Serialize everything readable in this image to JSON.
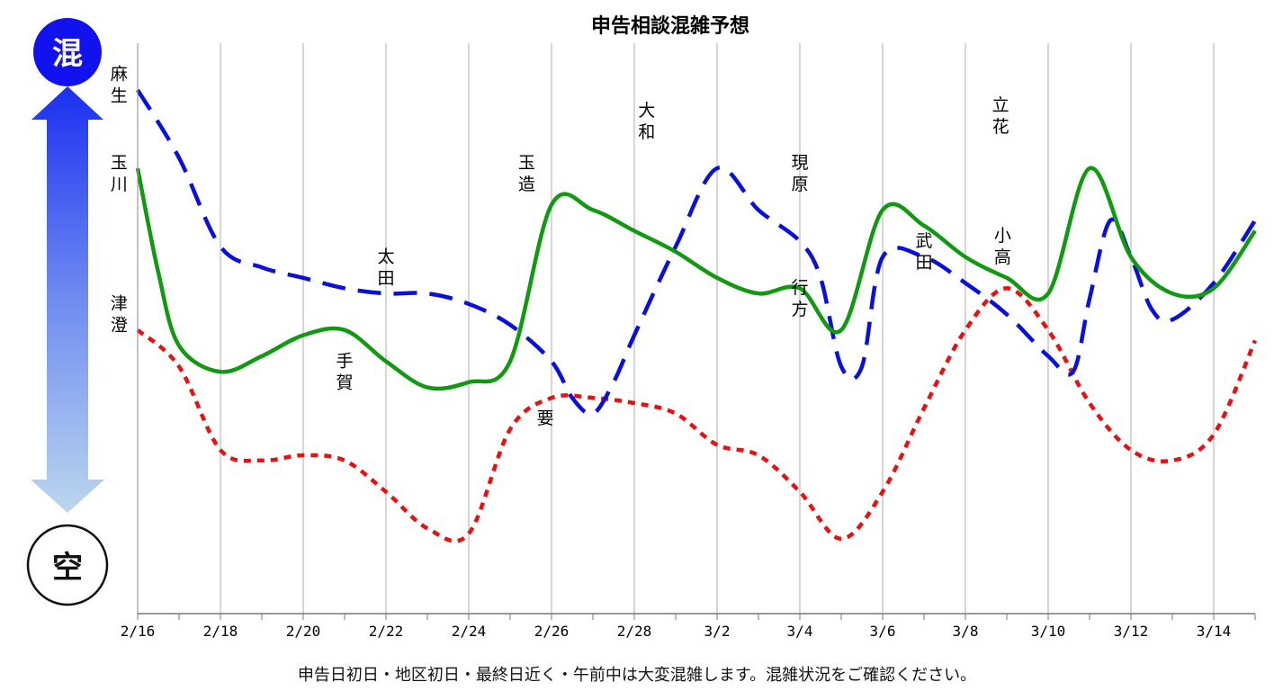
{
  "chart_data": {
    "type": "line",
    "title": "申告相談混雑予想",
    "footer": "申告日初日・地区初日・最終日近く・午前中は大変混雑します。混雑状況をご確認ください。",
    "scale": {
      "top_label": "混",
      "bottom_label": "空"
    },
    "x_ticks": [
      "2/16",
      "2/18",
      "2/20",
      "2/22",
      "2/24",
      "2/26",
      "2/28",
      "3/2",
      "3/4",
      "3/6",
      "3/8",
      "3/10",
      "3/12",
      "3/14"
    ],
    "x_range": [
      0,
      27
    ],
    "ylim": [
      0,
      100
    ],
    "grid": true,
    "series": [
      {
        "key": "blue",
        "color": "#0a10dc",
        "dash": "dashed",
        "points": [
          [
            0,
            100
          ],
          [
            1,
            87
          ],
          [
            2,
            70
          ],
          [
            3,
            66
          ],
          [
            4,
            64
          ],
          [
            5,
            62
          ],
          [
            6,
            61
          ],
          [
            7,
            61
          ],
          [
            8,
            59
          ],
          [
            9,
            55
          ],
          [
            10,
            48
          ],
          [
            10.5,
            41
          ],
          [
            11,
            38
          ],
          [
            11.5,
            44
          ],
          [
            12,
            53
          ],
          [
            13,
            70
          ],
          [
            14,
            85
          ],
          [
            15,
            77
          ],
          [
            16,
            71
          ],
          [
            16.5,
            64
          ],
          [
            17,
            47
          ],
          [
            17.5,
            47
          ],
          [
            18,
            68
          ],
          [
            19,
            68
          ],
          [
            20,
            63
          ],
          [
            21,
            57
          ],
          [
            22,
            49
          ],
          [
            22.6,
            46
          ],
          [
            23,
            60
          ],
          [
            23.5,
            75
          ],
          [
            24,
            68
          ],
          [
            24.5,
            58
          ],
          [
            25,
            56
          ],
          [
            26,
            63
          ],
          [
            27,
            75
          ]
        ]
      },
      {
        "key": "green",
        "color": "#119911",
        "dash": "solid",
        "points": [
          [
            0,
            85
          ],
          [
            0.5,
            65
          ],
          [
            1,
            51
          ],
          [
            2,
            46
          ],
          [
            3,
            49
          ],
          [
            4,
            53
          ],
          [
            5,
            54
          ],
          [
            6,
            48
          ],
          [
            7,
            43
          ],
          [
            8,
            44
          ],
          [
            9,
            48
          ],
          [
            10,
            78
          ],
          [
            11,
            77
          ],
          [
            12,
            73
          ],
          [
            13,
            69
          ],
          [
            14,
            64
          ],
          [
            15,
            61
          ],
          [
            16,
            62
          ],
          [
            17,
            54
          ],
          [
            18,
            77
          ],
          [
            19,
            74
          ],
          [
            20,
            68
          ],
          [
            21,
            64
          ],
          [
            22,
            61
          ],
          [
            23,
            85
          ],
          [
            24,
            68
          ],
          [
            25,
            61
          ],
          [
            26,
            62
          ],
          [
            27,
            73
          ]
        ]
      },
      {
        "key": "red",
        "color": "#e81010",
        "dash": "dotted",
        "points": [
          [
            0,
            54
          ],
          [
            1,
            47
          ],
          [
            2,
            31
          ],
          [
            3,
            29
          ],
          [
            4,
            30
          ],
          [
            5,
            29
          ],
          [
            6,
            23
          ],
          [
            7,
            16
          ],
          [
            8,
            15
          ],
          [
            9,
            35
          ],
          [
            10,
            41
          ],
          [
            11,
            41
          ],
          [
            12,
            40
          ],
          [
            13,
            38
          ],
          [
            14,
            32
          ],
          [
            15,
            30
          ],
          [
            16,
            23
          ],
          [
            17,
            14
          ],
          [
            18,
            23
          ],
          [
            19,
            39
          ],
          [
            20,
            54
          ],
          [
            21,
            62
          ],
          [
            22,
            54
          ],
          [
            23,
            40
          ],
          [
            24,
            31
          ],
          [
            25,
            29
          ],
          [
            26,
            34
          ],
          [
            27,
            52
          ]
        ]
      }
    ],
    "annotations": [
      {
        "text": "麻生",
        "x": -0.45,
        "y": 102
      },
      {
        "text": "玉川",
        "x": -0.45,
        "y": 85
      },
      {
        "text": "津澄",
        "x": -0.45,
        "y": 58
      },
      {
        "text": "手賀",
        "x": 5.0,
        "y": 47
      },
      {
        "text": "太田",
        "x": 6.0,
        "y": 67
      },
      {
        "text": "要",
        "x": 9.85,
        "y": 36
      },
      {
        "text": "玉造",
        "x": 9.4,
        "y": 85
      },
      {
        "text": "大和",
        "x": 12.3,
        "y": 95
      },
      {
        "text": "現原",
        "x": 16.0,
        "y": 85
      },
      {
        "text": "行方",
        "x": 16.0,
        "y": 61
      },
      {
        "text": "武田",
        "x": 19.0,
        "y": 70
      },
      {
        "text": "立花",
        "x": 20.85,
        "y": 96
      },
      {
        "text": "小高",
        "x": 20.9,
        "y": 71
      }
    ]
  }
}
